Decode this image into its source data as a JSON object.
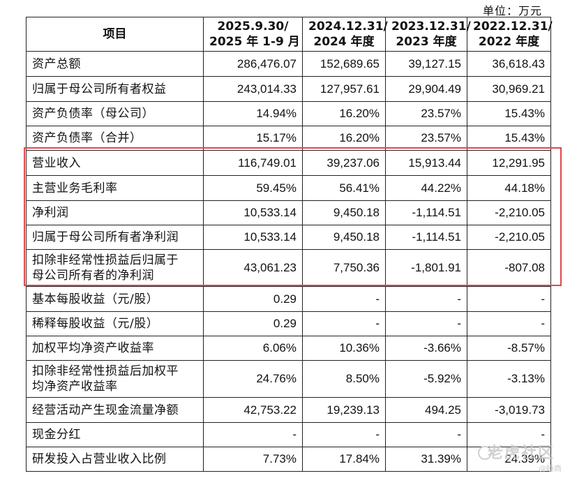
{
  "unit": "单位：万元",
  "headers": [
    {
      "lines": [
        "项目"
      ]
    },
    {
      "lines": [
        "2025.9.30/",
        "2025 年 1-9 月"
      ]
    },
    {
      "lines": [
        "2024.12.31/",
        "2024 年度"
      ]
    },
    {
      "lines": [
        "2023.12.31/",
        "2023 年度"
      ]
    },
    {
      "lines": [
        "2022.12.31/",
        "2022 年度"
      ]
    }
  ],
  "rows": [
    {
      "label": [
        "资产总额"
      ],
      "values": [
        "286,476.07",
        "152,689.65",
        "39,127.15",
        "36,618.43"
      ]
    },
    {
      "label": [
        "归属于母公司所有者权益"
      ],
      "values": [
        "243,014.33",
        "127,957.61",
        "29,904.49",
        "30,969.21"
      ]
    },
    {
      "label": [
        "资产负债率（母公司）"
      ],
      "values": [
        "14.94%",
        "16.20%",
        "23.57%",
        "15.43%"
      ]
    },
    {
      "label": [
        "资产负债率（合并）"
      ],
      "values": [
        "15.17%",
        "16.20%",
        "23.57%",
        "15.43%"
      ]
    },
    {
      "label": [
        "营业收入"
      ],
      "values": [
        "116,749.01",
        "39,237.06",
        "15,913.44",
        "12,291.95"
      ]
    },
    {
      "label": [
        "主营业务毛利率"
      ],
      "values": [
        "59.45%",
        "56.41%",
        "44.22%",
        "44.18%"
      ]
    },
    {
      "label": [
        "净利润"
      ],
      "values": [
        "10,533.14",
        "9,450.18",
        "-1,114.51",
        "-2,210.05"
      ]
    },
    {
      "label": [
        "归属于母公司所有者净利润"
      ],
      "values": [
        "10,533.14",
        "9,450.18",
        "-1,114.51",
        "-2,210.05"
      ]
    },
    {
      "label": [
        "扣除非经常性损益后归属于",
        "母公司所有者的净利润"
      ],
      "values": [
        "43,061.23",
        "7,750.36",
        "-1,801.91",
        "-807.08"
      ]
    },
    {
      "label": [
        "基本每股收益（元/股）"
      ],
      "values": [
        "0.29",
        "-",
        "-",
        "-"
      ]
    },
    {
      "label": [
        "稀释每股收益（元/股）"
      ],
      "values": [
        "0.29",
        "-",
        "-",
        "-"
      ]
    },
    {
      "label": [
        "加权平均净资产收益率"
      ],
      "values": [
        "6.06%",
        "10.36%",
        "-3.66%",
        "-8.57%"
      ]
    },
    {
      "label": [
        "扣除非经常性损益后加权平",
        "均净资产收益率"
      ],
      "values": [
        "24.76%",
        "8.50%",
        "-5.92%",
        "-3.13%"
      ]
    },
    {
      "label": [
        "经营活动产生现金流量净额"
      ],
      "values": [
        "42,753.22",
        "19,239.13",
        "494.25",
        "-3,019.73"
      ]
    },
    {
      "label": [
        "现金分红"
      ],
      "values": [
        "-",
        "-",
        "-",
        "-"
      ]
    },
    {
      "label": [
        "研发投入占营业收入比例"
      ],
      "values": [
        "7.73%",
        "17.84%",
        "31.39%",
        "24.39%"
      ]
    }
  ],
  "highlight_color": "#e0474c",
  "watermark": "老虎社区",
  "watermark_sub": "@睡商"
}
